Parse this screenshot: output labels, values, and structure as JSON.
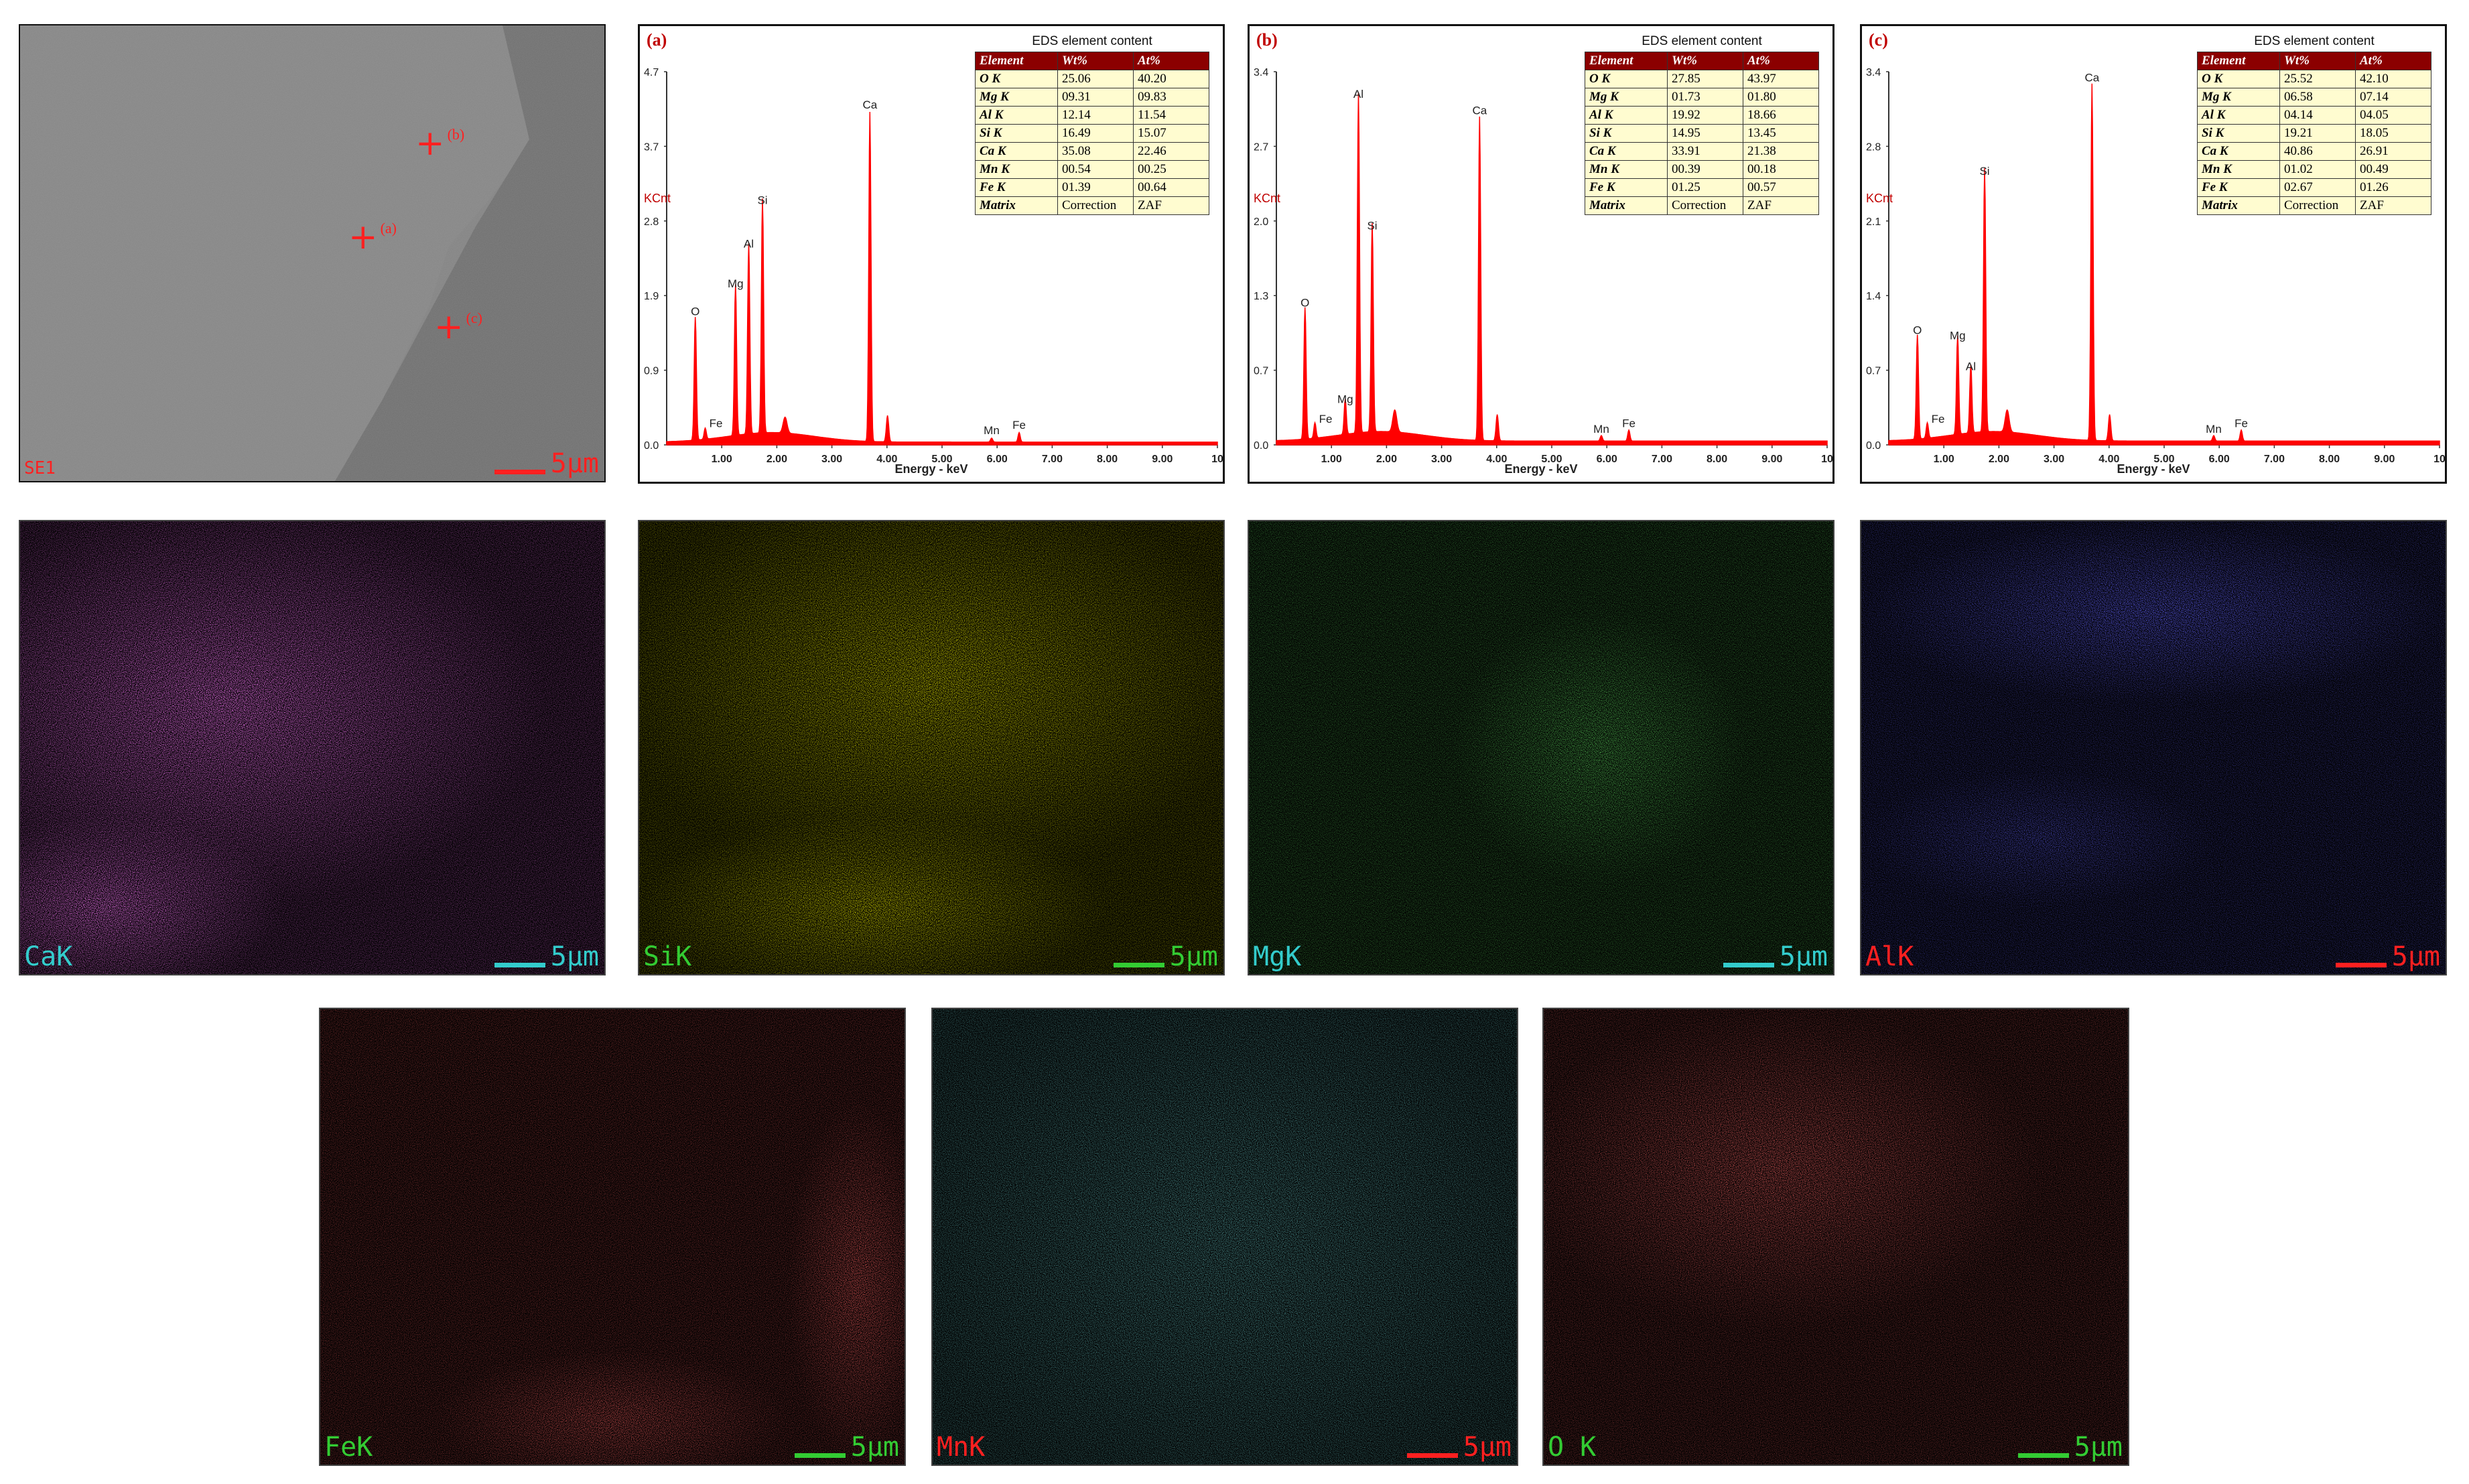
{
  "sem": {
    "label": "SE1",
    "scale": "5μm",
    "points": [
      "(a)",
      "(b)",
      "(c)"
    ]
  },
  "maps": [
    {
      "label": "CaK",
      "scale": "5μm",
      "color": "#ff33ff",
      "label_color": "#33cccc",
      "bar_color": "#33cccc"
    },
    {
      "label": "SiK",
      "scale": "5μm",
      "color": "#cccc00",
      "label_color": "#33cc33",
      "bar_color": "#33cc33"
    },
    {
      "label": "MgK",
      "scale": "5μm",
      "color": "#22cc22",
      "label_color": "#33cccc",
      "bar_color": "#33cccc"
    },
    {
      "label": "AlK",
      "scale": "5μm",
      "color": "#2020ff",
      "label_color": "#ff2020",
      "bar_color": "#ff2020"
    },
    {
      "label": "FeK",
      "scale": "5μm",
      "color": "#ff2020",
      "label_color": "#33cc33",
      "bar_color": "#33cc33"
    },
    {
      "label": "MnK",
      "scale": "5μm",
      "color": "#33cccc",
      "label_color": "#ff2020",
      "bar_color": "#ff2020"
    },
    {
      "label": "O K",
      "scale": "5μm",
      "color": "#e02020",
      "label_color": "#33cc33",
      "bar_color": "#33cc33"
    }
  ],
  "chart_data": [
    {
      "type": "line",
      "tag": "(a)",
      "xlabel": "Energy - keV",
      "ylabel": "KCnt",
      "xlim": [
        0,
        10
      ],
      "xticks": [
        "1.00",
        "2.00",
        "3.00",
        "4.00",
        "5.00",
        "6.00",
        "7.00",
        "8.00",
        "9.00",
        "10"
      ],
      "ylim": [
        0,
        4.7
      ],
      "yticks": [
        "0.0",
        "0.9",
        "1.9",
        "2.8",
        "3.7",
        "4.7"
      ],
      "peaks": [
        {
          "label": "Fe",
          "x": 0.7,
          "y": 0.14
        },
        {
          "label": "O",
          "x": 0.52,
          "y": 1.55
        },
        {
          "label": "Mg",
          "x": 1.25,
          "y": 1.9
        },
        {
          "label": "Al",
          "x": 1.49,
          "y": 2.4
        },
        {
          "label": "Si",
          "x": 1.74,
          "y": 2.95
        },
        {
          "label": "Ca",
          "x": 3.69,
          "y": 4.15
        },
        {
          "label": "Mn",
          "x": 5.9,
          "y": 0.05
        },
        {
          "label": "Fe",
          "x": 6.4,
          "y": 0.12
        }
      ],
      "table": {
        "caption": "EDS element content",
        "headers": [
          "Element",
          "Wt%",
          "At%"
        ],
        "rows": [
          [
            "O K",
            "25.06",
            "40.20"
          ],
          [
            "Mg K",
            "09.31",
            "09.83"
          ],
          [
            "Al K",
            "12.14",
            "11.54"
          ],
          [
            "Si K",
            "16.49",
            "15.07"
          ],
          [
            "Ca K",
            "35.08",
            "22.46"
          ],
          [
            "Mn K",
            "00.54",
            "00.25"
          ],
          [
            "Fe K",
            "01.39",
            "00.64"
          ],
          [
            "Matrix",
            "Correction",
            "ZAF"
          ]
        ]
      }
    },
    {
      "type": "line",
      "tag": "(b)",
      "xlabel": "Energy - keV",
      "ylabel": "KCnt",
      "xlim": [
        0,
        10
      ],
      "xticks": [
        "1.00",
        "2.00",
        "3.00",
        "4.00",
        "5.00",
        "6.00",
        "7.00",
        "8.00",
        "9.00",
        "10"
      ],
      "ylim": [
        0,
        3.4
      ],
      "yticks": [
        "0.0",
        "0.7",
        "1.3",
        "2.0",
        "2.7",
        "3.4"
      ],
      "peaks": [
        {
          "label": "Fe",
          "x": 0.7,
          "y": 0.14
        },
        {
          "label": "O",
          "x": 0.52,
          "y": 1.2
        },
        {
          "label": "Mg",
          "x": 1.25,
          "y": 0.32
        },
        {
          "label": "Al",
          "x": 1.49,
          "y": 3.1
        },
        {
          "label": "Si",
          "x": 1.74,
          "y": 1.9
        },
        {
          "label": "Ca",
          "x": 3.69,
          "y": 2.95
        },
        {
          "label": "Mn",
          "x": 5.9,
          "y": 0.05
        },
        {
          "label": "Fe",
          "x": 6.4,
          "y": 0.1
        }
      ],
      "table": {
        "caption": "EDS element content",
        "headers": [
          "Element",
          "Wt%",
          "At%"
        ],
        "rows": [
          [
            "O K",
            "27.85",
            "43.97"
          ],
          [
            "Mg K",
            "01.73",
            "01.80"
          ],
          [
            "Al K",
            "19.92",
            "18.66"
          ],
          [
            "Si K",
            "14.95",
            "13.45"
          ],
          [
            "Ca K",
            "33.91",
            "21.38"
          ],
          [
            "Mn K",
            "00.39",
            "00.18"
          ],
          [
            "Fe K",
            "01.25",
            "00.57"
          ],
          [
            "Matrix",
            "Correction",
            "ZAF"
          ]
        ]
      }
    },
    {
      "type": "line",
      "tag": "(c)",
      "xlabel": "Energy - keV",
      "ylabel": "KCnt",
      "xlim": [
        0,
        10
      ],
      "xticks": [
        "1.00",
        "2.00",
        "3.00",
        "4.00",
        "5.00",
        "6.00",
        "7.00",
        "8.00",
        "9.00",
        "10"
      ],
      "ylim": [
        0,
        3.4
      ],
      "yticks": [
        "0.0",
        "0.7",
        "1.4",
        "2.1",
        "2.8",
        "3.4"
      ],
      "peaks": [
        {
          "label": "Fe",
          "x": 0.7,
          "y": 0.14
        },
        {
          "label": "O",
          "x": 0.52,
          "y": 0.95
        },
        {
          "label": "Mg",
          "x": 1.25,
          "y": 0.9
        },
        {
          "label": "Al",
          "x": 1.49,
          "y": 0.62
        },
        {
          "label": "Si",
          "x": 1.74,
          "y": 2.4
        },
        {
          "label": "Ca",
          "x": 3.69,
          "y": 3.25
        },
        {
          "label": "Mn",
          "x": 5.9,
          "y": 0.05
        },
        {
          "label": "Fe",
          "x": 6.4,
          "y": 0.1
        }
      ],
      "table": {
        "caption": "EDS element content",
        "headers": [
          "Element",
          "Wt%",
          "At%"
        ],
        "rows": [
          [
            "O K",
            "25.52",
            "42.10"
          ],
          [
            "Mg K",
            "06.58",
            "07.14"
          ],
          [
            "Al K",
            "04.14",
            "04.05"
          ],
          [
            "Si K",
            "19.21",
            "18.05"
          ],
          [
            "Ca K",
            "40.86",
            "26.91"
          ],
          [
            "Mn K",
            "01.02",
            "00.49"
          ],
          [
            "Fe K",
            "02.67",
            "01.26"
          ],
          [
            "Matrix",
            "Correction",
            "ZAF"
          ]
        ]
      }
    }
  ]
}
